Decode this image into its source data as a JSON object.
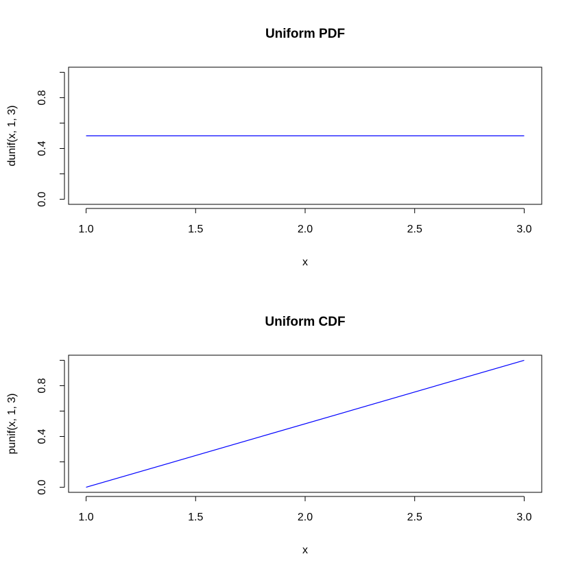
{
  "chart_data": [
    {
      "type": "line",
      "title": "Uniform PDF",
      "xlabel": "x",
      "ylabel": "dunif(x, 1, 3)",
      "x": [
        1,
        3
      ],
      "values": [
        0.5,
        0.5
      ],
      "color": "#0000ff",
      "xlim": [
        0.92,
        3.08
      ],
      "ylim": [
        -0.04,
        1.04
      ],
      "xticks": [
        {
          "value": 1,
          "label": "1.0"
        },
        {
          "value": 1.5,
          "label": "1.5"
        },
        {
          "value": 2,
          "label": "2.0"
        },
        {
          "value": 2.5,
          "label": "2.5"
        },
        {
          "value": 3,
          "label": "3.0"
        }
      ],
      "yticks": [
        {
          "value": 0,
          "label": "0.0"
        },
        {
          "value": 0.2,
          "label": null
        },
        {
          "value": 0.4,
          "label": "0.4"
        },
        {
          "value": 0.6,
          "label": null
        },
        {
          "value": 0.8,
          "label": "0.8"
        },
        {
          "value": 1,
          "label": null
        }
      ]
    },
    {
      "type": "line",
      "title": "Uniform CDF",
      "xlabel": "x",
      "ylabel": "punif(x, 1, 3)",
      "x": [
        1,
        3
      ],
      "values": [
        0,
        1
      ],
      "color": "#0000ff",
      "xlim": [
        0.92,
        3.08
      ],
      "ylim": [
        -0.04,
        1.04
      ],
      "xticks": [
        {
          "value": 1,
          "label": "1.0"
        },
        {
          "value": 1.5,
          "label": "1.5"
        },
        {
          "value": 2,
          "label": "2.0"
        },
        {
          "value": 2.5,
          "label": "2.5"
        },
        {
          "value": 3,
          "label": "3.0"
        }
      ],
      "yticks": [
        {
          "value": 0,
          "label": "0.0"
        },
        {
          "value": 0.2,
          "label": null
        },
        {
          "value": 0.4,
          "label": "0.4"
        },
        {
          "value": 0.6,
          "label": null
        },
        {
          "value": 0.8,
          "label": "0.8"
        },
        {
          "value": 1,
          "label": null
        }
      ]
    }
  ]
}
